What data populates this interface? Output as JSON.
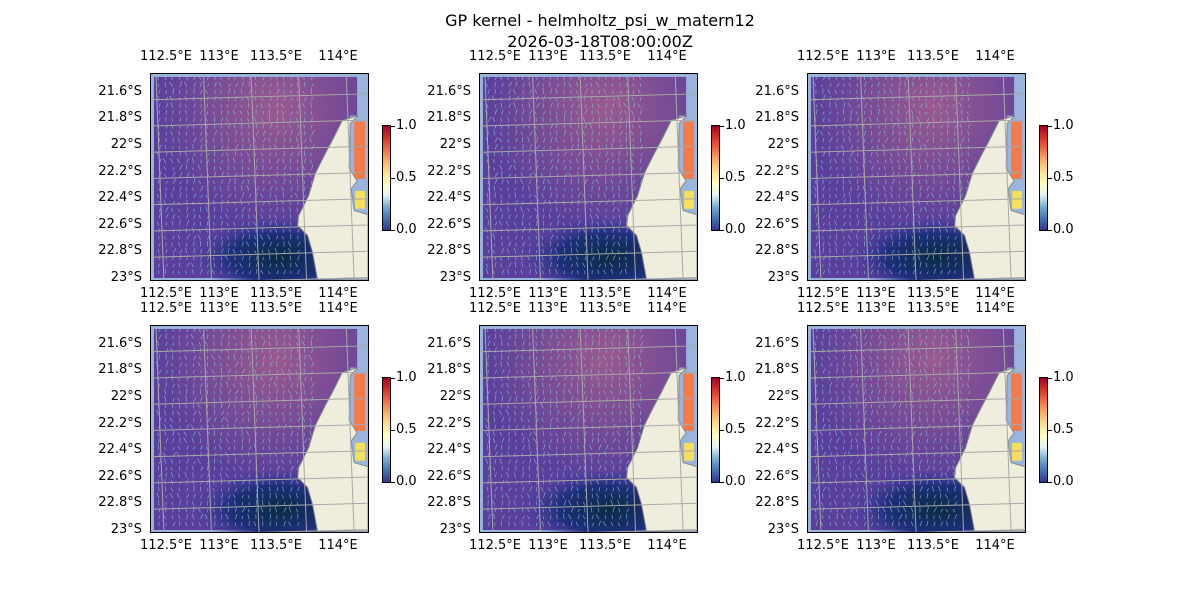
{
  "figure": {
    "title_line1": "GP kernel - helmholtz_psi_w_matern12",
    "title_line2": "2026-03-18T08:00:00Z"
  },
  "chart_data": {
    "type": "heatmap",
    "panels": 6,
    "layout": "2x3",
    "lon_ticks": [
      "112.5°E",
      "113°E",
      "113.5°E",
      "114°E"
    ],
    "lat_ticks": [
      "21.6°S",
      "21.8°S",
      "22°S",
      "22.2°S",
      "22.4°S",
      "22.6°S",
      "22.8°S",
      "23°S"
    ],
    "colorbar": {
      "ticks": [
        "0.0",
        "0.5",
        "1.0"
      ],
      "range": [
        0,
        1
      ],
      "colormap": "RdYlBu_r"
    },
    "colors": {
      "land": "#efeedd",
      "water": "#99b4dd",
      "grid": "#a8a8a8",
      "field_low": "#0b2a44",
      "field_mid": "#5a3f9c",
      "field_high": "#9a5a8e"
    }
  }
}
